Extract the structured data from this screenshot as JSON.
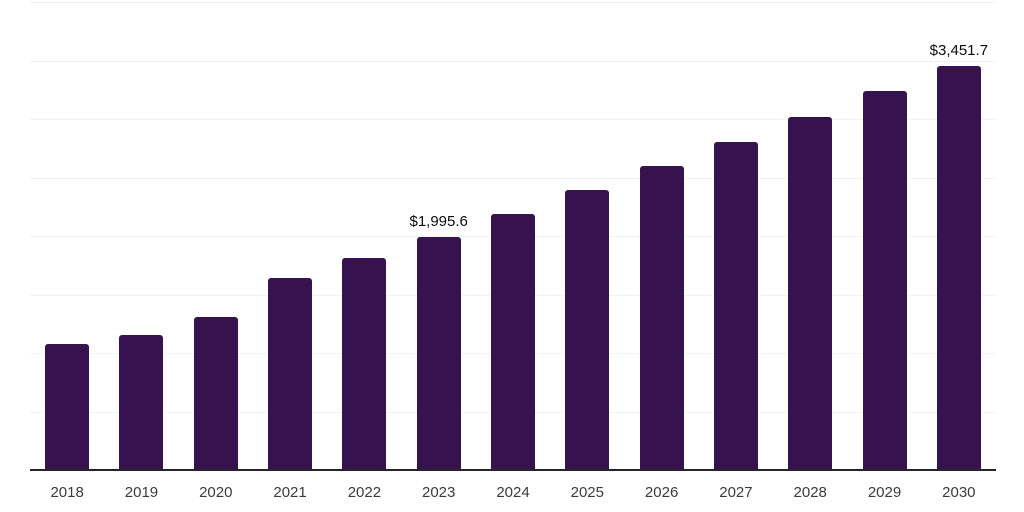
{
  "chart_data": {
    "type": "bar",
    "title": "",
    "categories": [
      "2018",
      "2019",
      "2020",
      "2021",
      "2022",
      "2023",
      "2024",
      "2025",
      "2026",
      "2027",
      "2028",
      "2029",
      "2030"
    ],
    "values": [
      1080,
      1154,
      1311,
      1640,
      1812,
      1995.6,
      2190,
      2392,
      2598,
      2801,
      3017,
      3242,
      3451.7
    ],
    "data_labels": {
      "2023": "$1,995.6",
      "2030": "$3,451.7"
    },
    "xlabel": "",
    "ylabel": "",
    "ylim": [
      0,
      4000
    ],
    "gridline_step": 500,
    "grid": true,
    "legend_position": "none",
    "colors": {
      "bar": "#36134F",
      "axis_line": "#26252B",
      "gridline": "#F2F2F4",
      "tick_label": "#3B3B3B",
      "data_label": "#0B0B0B",
      "background": "#FFFFFF"
    }
  }
}
